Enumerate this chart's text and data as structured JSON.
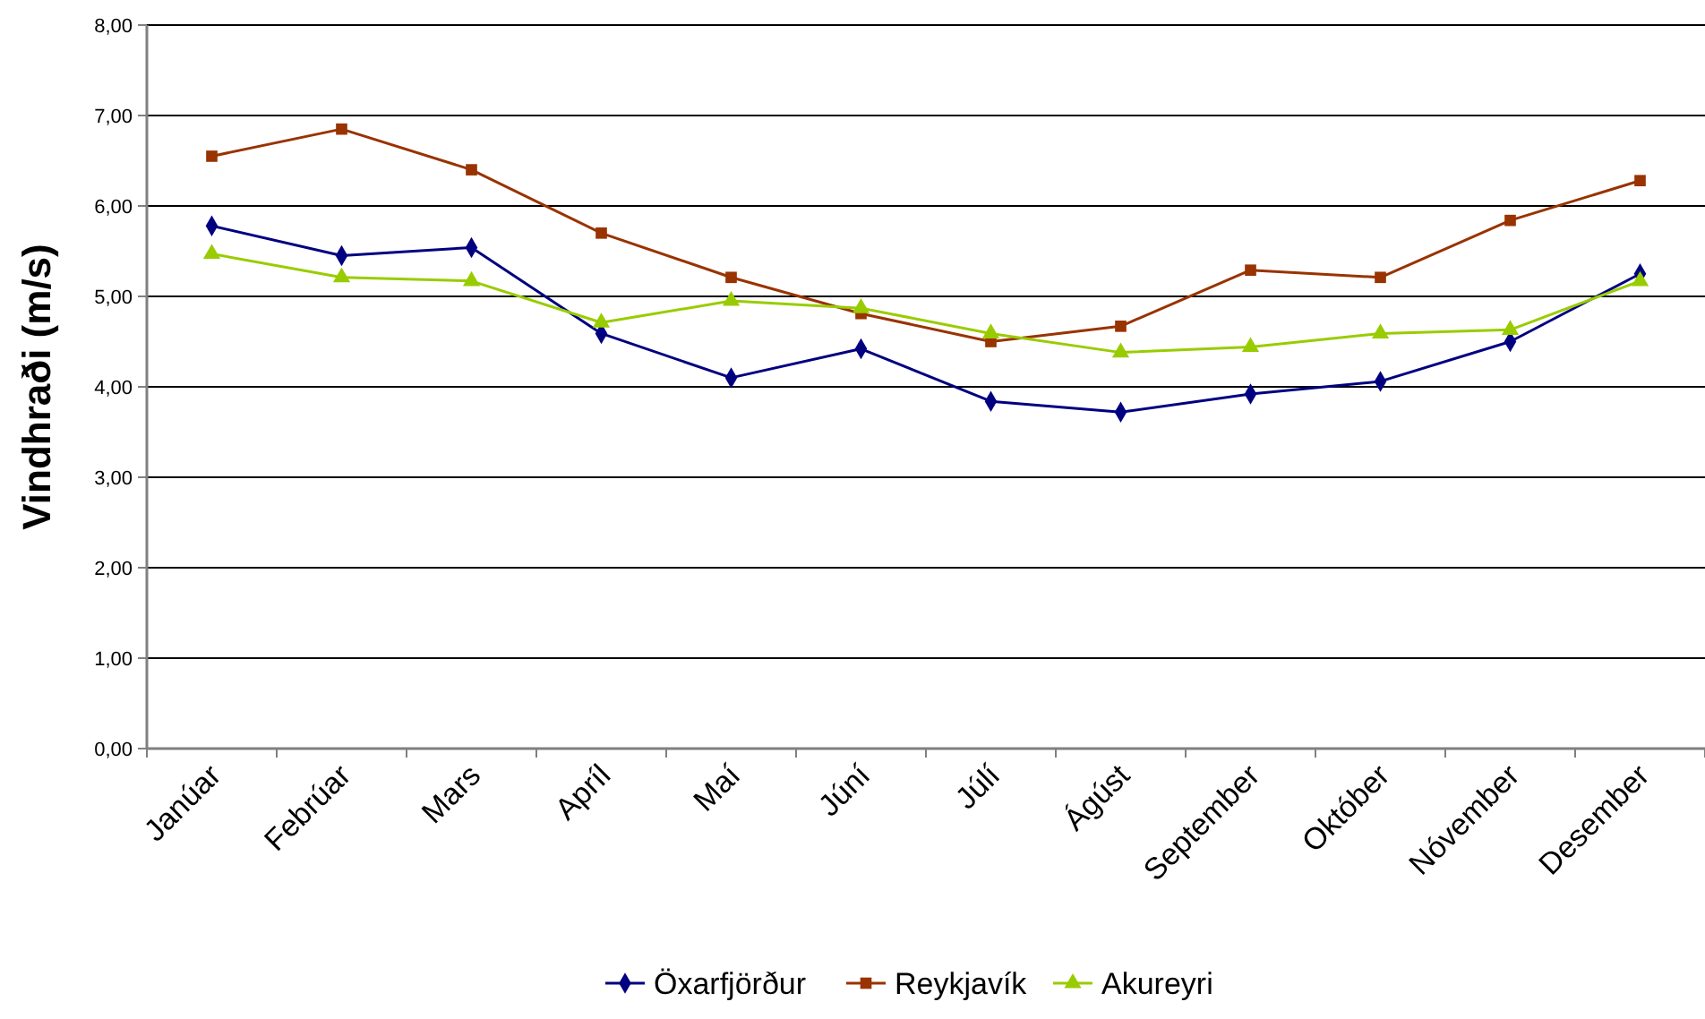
{
  "chart_data": {
    "type": "line",
    "ylabel": "Vindhraði (m/s)",
    "categories": [
      "Janúar",
      "Febrúar",
      "Mars",
      "Apríl",
      "Maí",
      "Júní",
      "Júlí",
      "Ágúst",
      "September",
      "Október",
      "Nóvember",
      "Desember"
    ],
    "series": [
      {
        "name": "Öxarfjörður",
        "color": "#000080",
        "marker": "diamond",
        "values": [
          5.78,
          5.45,
          5.54,
          4.59,
          4.1,
          4.42,
          3.84,
          3.72,
          3.92,
          4.06,
          4.5,
          5.25
        ]
      },
      {
        "name": "Reykjavík",
        "color": "#993300",
        "marker": "square",
        "values": [
          6.55,
          6.85,
          6.4,
          5.7,
          5.21,
          4.81,
          4.5,
          4.67,
          5.29,
          5.21,
          5.84,
          6.28
        ]
      },
      {
        "name": "Akureyri",
        "color": "#99cc00",
        "marker": "triangle",
        "values": [
          5.47,
          5.21,
          5.17,
          4.71,
          4.95,
          4.87,
          4.59,
          4.38,
          4.44,
          4.59,
          4.63,
          5.17
        ]
      }
    ],
    "ylim": [
      0,
      8
    ],
    "yticks": [
      {
        "value": 0,
        "label": "0,00"
      },
      {
        "value": 1,
        "label": "1,00"
      },
      {
        "value": 2,
        "label": "2,00"
      },
      {
        "value": 3,
        "label": "3,00"
      },
      {
        "value": 4,
        "label": "4,00"
      },
      {
        "value": 5,
        "label": "5,00"
      },
      {
        "value": 6,
        "label": "6,00"
      },
      {
        "value": 7,
        "label": "7,00"
      },
      {
        "value": 8,
        "label": "8,00"
      }
    ],
    "grid": "y",
    "legend": "bottom",
    "line_style": "solid"
  }
}
